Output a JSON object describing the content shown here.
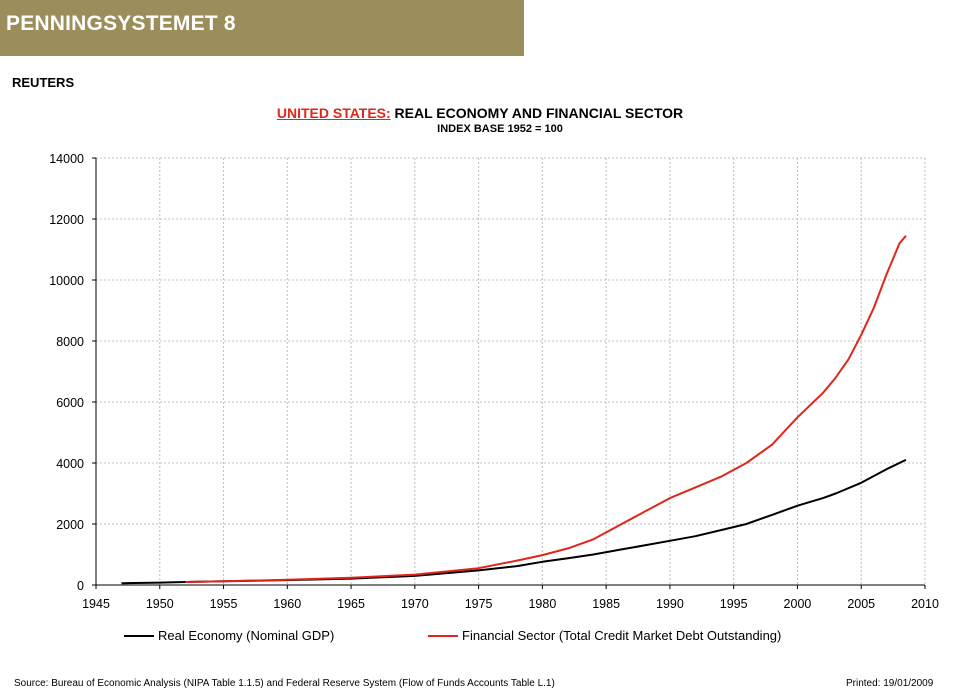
{
  "header": {
    "banner": "PENNINGSYSTEMET 8",
    "banner_color": "#9b8e5b"
  },
  "publisher": "REUTERS",
  "chart_data": {
    "type": "line",
    "title_prefix": "UNITED STATES:",
    "title_rest": " REAL ECONOMY AND FINANCIAL SECTOR",
    "subtitle": "INDEX BASE 1952 = 100",
    "title_prefix_color": "#e0261b",
    "xlim": [
      1945,
      2010
    ],
    "ylim": [
      0,
      14000
    ],
    "x_ticks": [
      1945,
      1950,
      1955,
      1960,
      1965,
      1970,
      1975,
      1980,
      1985,
      1990,
      1995,
      2000,
      2005,
      2010
    ],
    "y_ticks": [
      0,
      2000,
      4000,
      6000,
      8000,
      10000,
      12000,
      14000
    ],
    "grid": true,
    "legend_position": "bottom",
    "series": [
      {
        "name": "Real Economy (Nominal GDP)",
        "color": "#000000",
        "x": [
          1947,
          1950,
          1952,
          1955,
          1960,
          1965,
          1970,
          1975,
          1978,
          1980,
          1982,
          1984,
          1986,
          1988,
          1990,
          1992,
          1994,
          1996,
          1998,
          2000,
          2002,
          2003,
          2005,
          2007,
          2008.5
        ],
        "y": [
          60,
          80,
          100,
          120,
          160,
          210,
          300,
          480,
          620,
          760,
          880,
          1000,
          1150,
          1300,
          1450,
          1600,
          1800,
          2000,
          2300,
          2600,
          2850,
          3000,
          3350,
          3800,
          4100
        ]
      },
      {
        "name": "Financial Sector (Total Credit Market Debt Outstanding)",
        "color": "#e0261b",
        "x": [
          1952,
          1955,
          1960,
          1965,
          1970,
          1975,
          1978,
          1980,
          1982,
          1984,
          1986,
          1988,
          1990,
          1992,
          1994,
          1996,
          1998,
          2000,
          2002,
          2003,
          2004,
          2005,
          2006,
          2007,
          2008,
          2008.5
        ],
        "y": [
          100,
          120,
          170,
          240,
          340,
          550,
          800,
          980,
          1200,
          1500,
          1950,
          2400,
          2850,
          3200,
          3550,
          4000,
          4600,
          5500,
          6300,
          6800,
          7400,
          8200,
          9100,
          10200,
          11200,
          11450
        ]
      }
    ]
  },
  "footer": {
    "source": "Source:  Bureau of Economic Analysis (NIPA Table 1.1.5) and Federal Reserve System (Flow of Funds Accounts Table L.1)",
    "printed": "Printed:  19/01/2009"
  }
}
